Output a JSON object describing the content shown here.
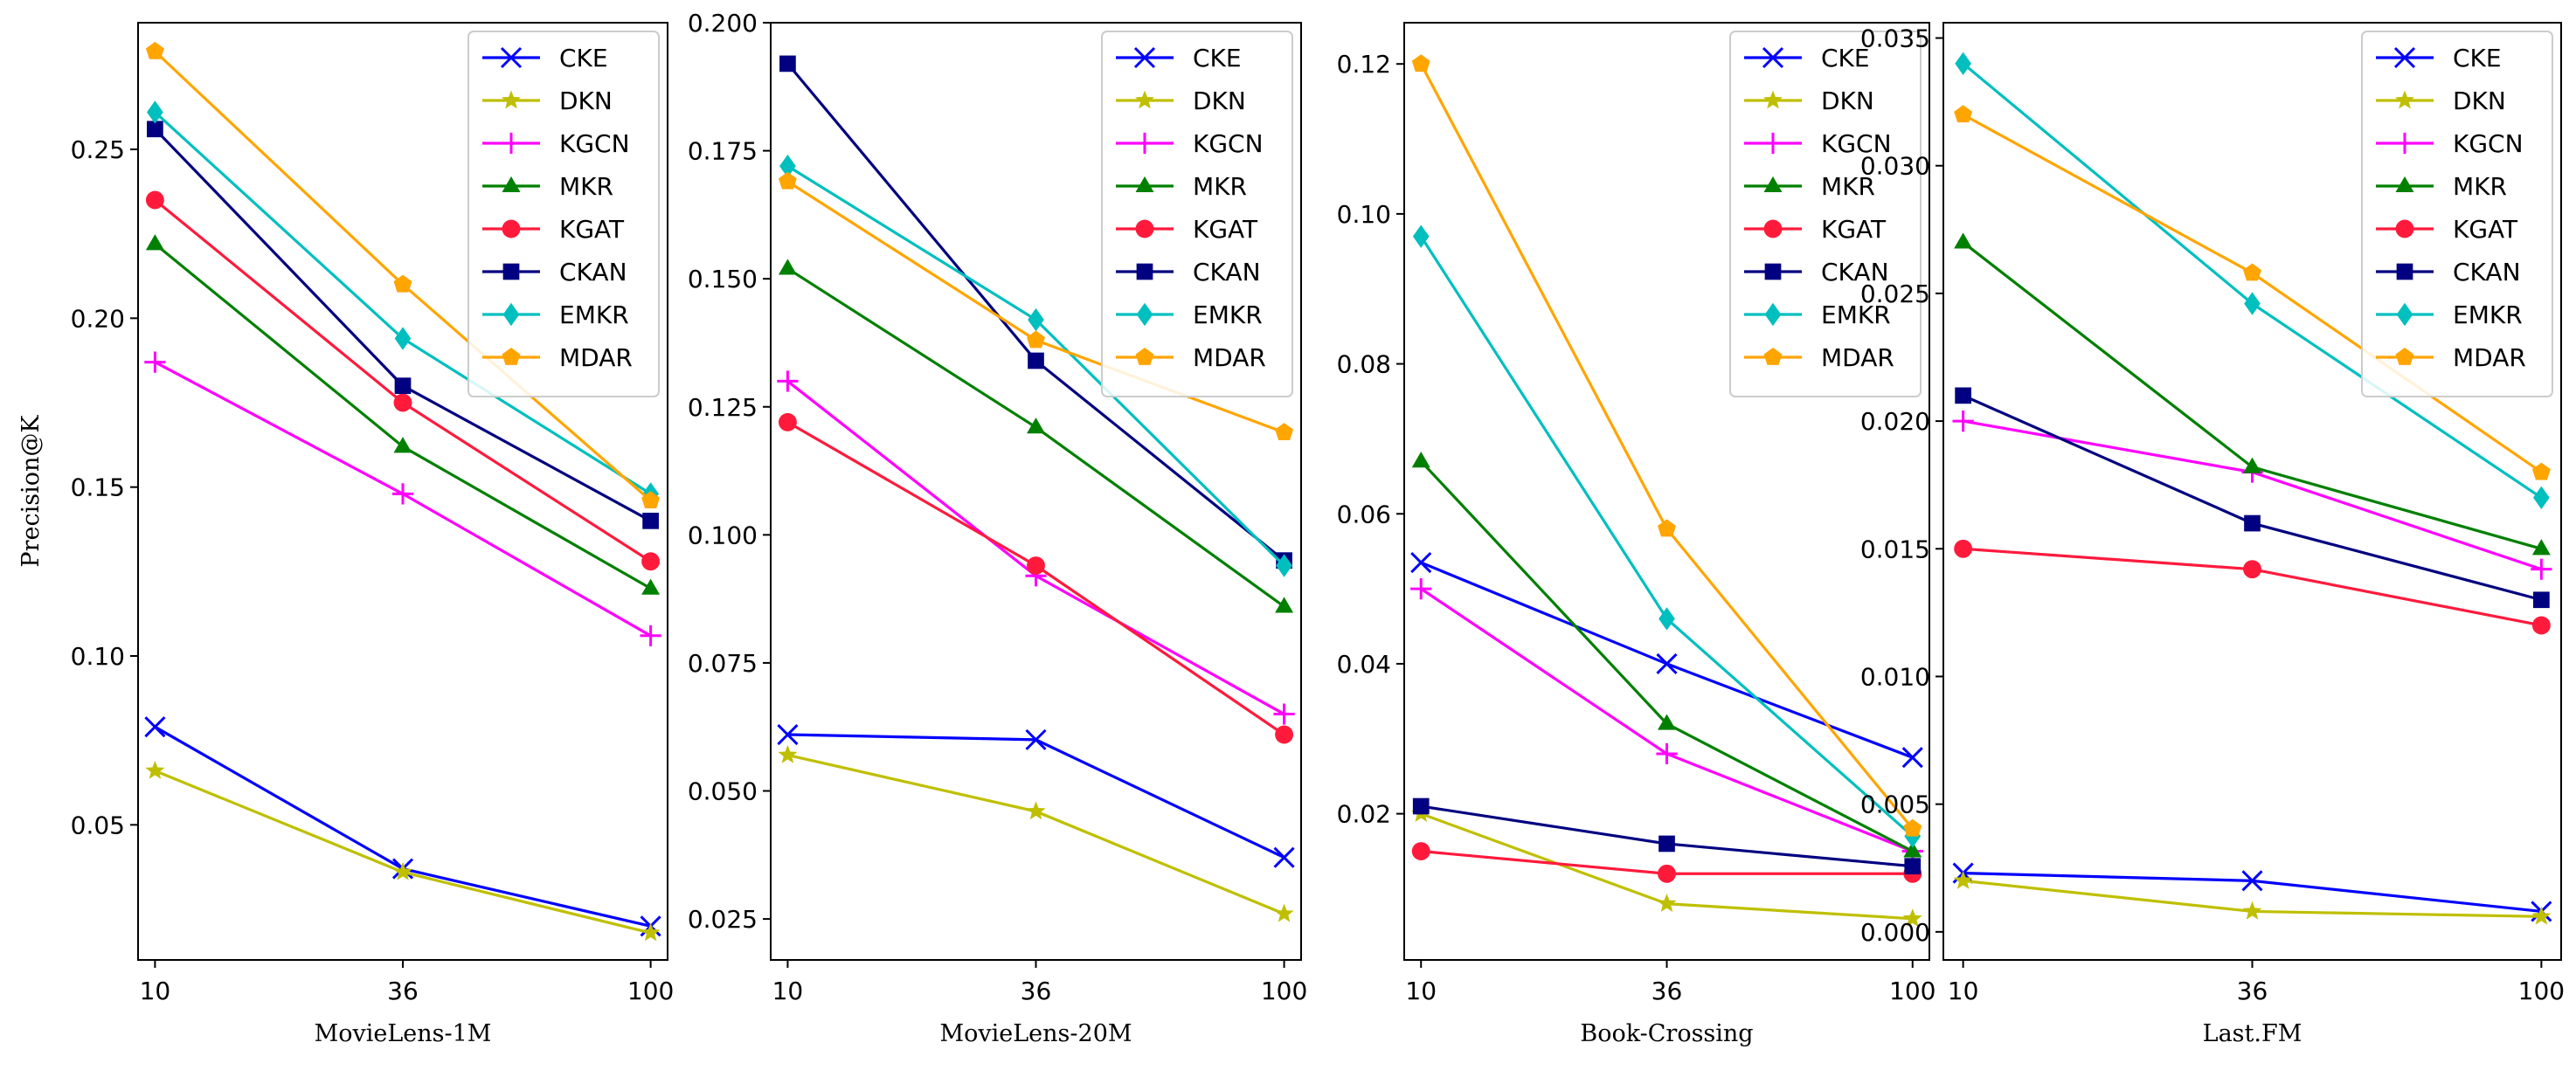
{
  "chart_data": [
    {
      "type": "line",
      "title": "",
      "xlabel": "MovieLens-1M",
      "ylabel": "Precision@K",
      "x": [
        10,
        36,
        100
      ],
      "ylim": [
        0.01,
        0.2875
      ],
      "yticks": [
        0.05,
        0.1,
        0.15,
        0.2,
        0.25
      ],
      "ytick_labels": [
        "0.05",
        "0.10",
        "0.15",
        "0.20",
        "0.25"
      ],
      "legend_position": "top-right",
      "series": [
        {
          "name": "CKE",
          "values": [
            0.079,
            0.037,
            0.02
          ]
        },
        {
          "name": "DKN",
          "values": [
            0.066,
            0.036,
            0.018
          ]
        },
        {
          "name": "KGCN",
          "values": [
            0.187,
            0.148,
            0.106
          ]
        },
        {
          "name": "MKR",
          "values": [
            0.222,
            0.162,
            0.12
          ]
        },
        {
          "name": "KGAT",
          "values": [
            0.235,
            0.175,
            0.128
          ]
        },
        {
          "name": "CKAN",
          "values": [
            0.256,
            0.18,
            0.14
          ]
        },
        {
          "name": "EMKR",
          "values": [
            0.261,
            0.194,
            0.148
          ]
        },
        {
          "name": "MDAR",
          "values": [
            0.279,
            0.21,
            0.146
          ]
        }
      ]
    },
    {
      "type": "line",
      "title": "",
      "xlabel": "MovieLens-20M",
      "ylabel": "",
      "x": [
        10,
        36,
        100
      ],
      "ylim": [
        0.017,
        0.2
      ],
      "yticks": [
        0.025,
        0.05,
        0.075,
        0.1,
        0.125,
        0.15,
        0.175,
        0.2
      ],
      "ytick_labels": [
        "0.025",
        "0.050",
        "0.075",
        "0.100",
        "0.125",
        "0.150",
        "0.175",
        "0.200"
      ],
      "legend_position": "top-right",
      "series": [
        {
          "name": "CKE",
          "values": [
            0.061,
            0.06,
            0.037
          ]
        },
        {
          "name": "DKN",
          "values": [
            0.057,
            0.046,
            0.026
          ]
        },
        {
          "name": "KGCN",
          "values": [
            0.13,
            0.092,
            0.065
          ]
        },
        {
          "name": "MKR",
          "values": [
            0.152,
            0.121,
            0.086
          ]
        },
        {
          "name": "KGAT",
          "values": [
            0.122,
            0.094,
            0.061
          ]
        },
        {
          "name": "CKAN",
          "values": [
            0.192,
            0.134,
            0.095
          ]
        },
        {
          "name": "EMKR",
          "values": [
            0.172,
            0.142,
            0.094
          ]
        },
        {
          "name": "MDAR",
          "values": [
            0.169,
            0.138,
            0.12
          ]
        }
      ]
    },
    {
      "type": "line",
      "title": "",
      "xlabel": "Book-Crossing",
      "ylabel": "",
      "x": [
        10,
        36,
        100
      ],
      "ylim": [
        0.0005,
        0.1255
      ],
      "yticks": [
        0.02,
        0.04,
        0.06,
        0.08,
        0.1,
        0.12
      ],
      "ytick_labels": [
        "0.02",
        "0.04",
        "0.06",
        "0.08",
        "0.10",
        "0.12"
      ],
      "legend_position": "top-right",
      "series": [
        {
          "name": "CKE",
          "values": [
            0.0535,
            0.04,
            0.0275
          ]
        },
        {
          "name": "DKN",
          "values": [
            0.02,
            0.008,
            0.006
          ]
        },
        {
          "name": "KGCN",
          "values": [
            0.05,
            0.028,
            0.015
          ]
        },
        {
          "name": "MKR",
          "values": [
            0.067,
            0.032,
            0.015
          ]
        },
        {
          "name": "KGAT",
          "values": [
            0.015,
            0.012,
            0.012
          ]
        },
        {
          "name": "CKAN",
          "values": [
            0.021,
            0.016,
            0.013
          ]
        },
        {
          "name": "EMKR",
          "values": [
            0.097,
            0.046,
            0.017
          ]
        },
        {
          "name": "MDAR",
          "values": [
            0.12,
            0.058,
            0.018
          ]
        }
      ]
    },
    {
      "type": "line",
      "title": "",
      "xlabel": "Last.FM",
      "ylabel": "",
      "x": [
        10,
        36,
        100
      ],
      "ylim": [
        -0.0011,
        0.0356
      ],
      "yticks": [
        0.0,
        0.005,
        0.01,
        0.015,
        0.02,
        0.025,
        0.03,
        0.035
      ],
      "ytick_labels": [
        "0.000",
        "0.005",
        "0.010",
        "0.015",
        "0.020",
        "0.025",
        "0.030",
        "0.035"
      ],
      "legend_position": "top-right",
      "series": [
        {
          "name": "CKE",
          "values": [
            0.0023,
            0.002,
            0.0008
          ]
        },
        {
          "name": "DKN",
          "values": [
            0.002,
            0.0008,
            0.0006
          ]
        },
        {
          "name": "KGCN",
          "values": [
            0.02,
            0.018,
            0.0142
          ]
        },
        {
          "name": "MKR",
          "values": [
            0.027,
            0.0182,
            0.015
          ]
        },
        {
          "name": "KGAT",
          "values": [
            0.015,
            0.0142,
            0.012
          ]
        },
        {
          "name": "CKAN",
          "values": [
            0.021,
            0.016,
            0.013
          ]
        },
        {
          "name": "EMKR",
          "values": [
            0.034,
            0.0246,
            0.017
          ]
        },
        {
          "name": "MDAR",
          "values": [
            0.032,
            0.0258,
            0.018
          ]
        }
      ]
    }
  ],
  "styles": {
    "CKE": {
      "color": "#0000ff",
      "marker": "x"
    },
    "DKN": {
      "color": "#bfbf00",
      "marker": "star"
    },
    "KGCN": {
      "color": "#ff00ff",
      "marker": "plus"
    },
    "MKR": {
      "color": "#008000",
      "marker": "triangle"
    },
    "KGAT": {
      "color": "#ff1a3c",
      "marker": "circle"
    },
    "CKAN": {
      "color": "#000080",
      "marker": "square"
    },
    "EMKR": {
      "color": "#00bfbf",
      "marker": "diamond"
    },
    "MDAR": {
      "color": "#ffa500",
      "marker": "pentagon"
    }
  }
}
